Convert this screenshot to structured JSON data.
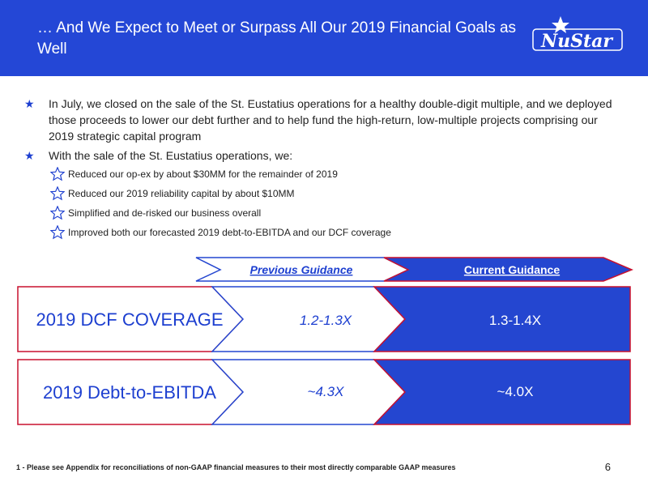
{
  "header": {
    "title": "… And We Expect to Meet or Surpass All Our 2019 Financial Goals as Well",
    "logo_text": "NuStar"
  },
  "bullets": [
    {
      "text": "In July, we closed on the sale of the St. Eustatius operations for a healthy double-digit multiple, and we deployed those proceeds to lower our debt further and to help fund the high-return, low-multiple projects comprising our 2019 strategic capital program",
      "sub": []
    },
    {
      "text": "With the sale of the St. Eustatius operations, we:",
      "sub": [
        "Reduced our op-ex by about $30MM for the remainder of 2019",
        "Reduced our 2019 reliability capital by about $10MM",
        "Simplified and de-risked our business overall",
        "Improved both our forecasted 2019 debt-to-EBITDA and our DCF coverage"
      ]
    }
  ],
  "guidance": {
    "previous_header": "Previous Guidance",
    "current_header": "Current Guidance",
    "rows": [
      {
        "metric": "2019 DCF COVERAGE",
        "previous": "1.2-1.3X",
        "current": "1.3-1.4X"
      },
      {
        "metric": "2019 Debt-to-EBITDA",
        "previous": "~4.3X",
        "current": "~4.0X"
      }
    ]
  },
  "footer": {
    "footnote": "1 - Please see Appendix for reconciliations of non-GAAP financial measures to their most directly comparable GAAP measures",
    "page_number": "6"
  },
  "colors": {
    "header_bg": "#2447d6",
    "accent_blue": "#1d3fd0",
    "outline_red": "#c8102e",
    "outline_blue": "#2446d0"
  }
}
